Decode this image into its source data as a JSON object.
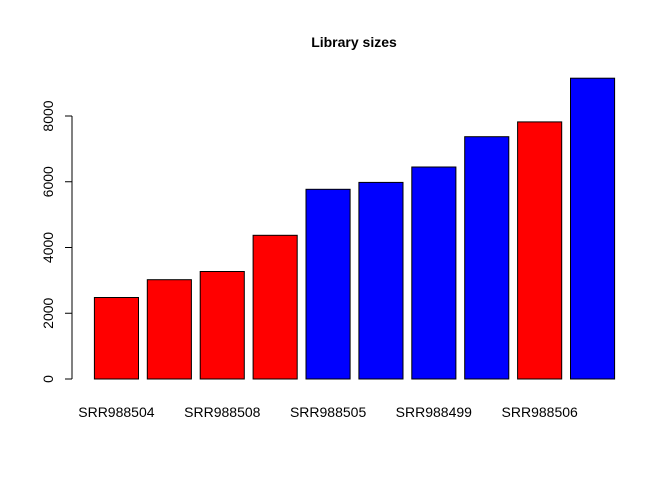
{
  "chart_data": {
    "type": "bar",
    "title": "Library sizes",
    "xlabel": "",
    "ylabel": "",
    "categories": [
      "SRR988504",
      "",
      "SRR988508",
      "",
      "SRR988505",
      "",
      "SRR988499",
      "",
      "SRR988506",
      ""
    ],
    "values": [
      2480,
      3020,
      3270,
      4370,
      5770,
      5980,
      6450,
      7370,
      7820,
      9150
    ],
    "colors": [
      "#ff0000",
      "#ff0000",
      "#ff0000",
      "#ff0000",
      "#0000ff",
      "#0000ff",
      "#0000ff",
      "#0000ff",
      "#ff0000",
      "#0000ff"
    ],
    "yticks": [
      0,
      2000,
      4000,
      6000,
      8000
    ],
    "ylim": [
      0,
      9150
    ],
    "grid": false,
    "legend": false
  }
}
